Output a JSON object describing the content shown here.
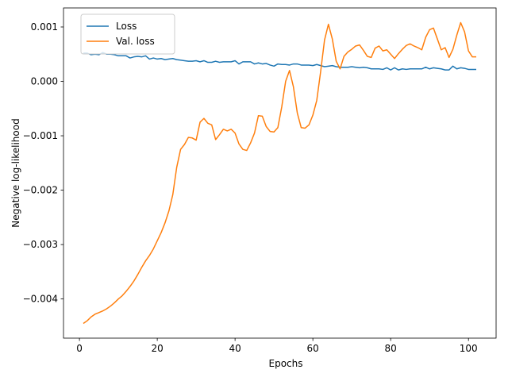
{
  "chart_data": {
    "type": "line",
    "title": "",
    "xlabel": "Epochs",
    "ylabel": "Negative log-likelihood",
    "xlim": [
      -4.1,
      107.1
    ],
    "ylim": [
      -0.00472,
      0.00135
    ],
    "xticks": [
      0,
      20,
      40,
      60,
      80,
      100
    ],
    "xtick_labels": [
      "0",
      "20",
      "40",
      "60",
      "80",
      "100"
    ],
    "yticks": [
      -0.004,
      -0.003,
      -0.002,
      -0.001,
      0.0,
      0.001
    ],
    "ytick_labels": [
      "−0.004",
      "−0.003",
      "−0.002",
      "−0.001",
      "0.000",
      "0.001"
    ],
    "grid": false,
    "legend_position": "top-left",
    "x_start": 1,
    "x_step": 1,
    "series": [
      {
        "name": "Loss",
        "color": "#1f77b4",
        "values": [
          0.00052,
          0.00052,
          0.00049,
          0.0005,
          0.00049,
          0.00053,
          0.0005,
          0.0005,
          0.00049,
          0.00047,
          0.00047,
          0.00047,
          0.00043,
          0.00045,
          0.00046,
          0.00045,
          0.00047,
          0.00041,
          0.00043,
          0.00041,
          0.00042,
          0.0004,
          0.00041,
          0.00042,
          0.0004,
          0.00039,
          0.00038,
          0.00037,
          0.00037,
          0.00038,
          0.00036,
          0.00038,
          0.00035,
          0.00035,
          0.00037,
          0.00035,
          0.00036,
          0.00036,
          0.00036,
          0.00038,
          0.00032,
          0.00036,
          0.00036,
          0.00036,
          0.00032,
          0.00034,
          0.00032,
          0.00033,
          0.0003,
          0.00028,
          0.00032,
          0.00031,
          0.00031,
          0.0003,
          0.00032,
          0.00032,
          0.0003,
          0.0003,
          0.0003,
          0.00029,
          0.00031,
          0.00029,
          0.00027,
          0.00028,
          0.00029,
          0.00027,
          0.00026,
          0.00026,
          0.00026,
          0.00027,
          0.00026,
          0.00025,
          0.00026,
          0.00025,
          0.00023,
          0.00023,
          0.00023,
          0.00022,
          0.00025,
          0.00021,
          0.00025,
          0.00021,
          0.00023,
          0.00022,
          0.00023,
          0.00023,
          0.00023,
          0.00023,
          0.00026,
          0.00023,
          0.00025,
          0.00024,
          0.00023,
          0.00021,
          0.00021,
          0.00028,
          0.00023,
          0.00025,
          0.00024,
          0.00022,
          0.00022,
          0.00022
        ]
      },
      {
        "name": "Val. loss",
        "color": "#ff7f0e",
        "values": [
          -0.00445,
          -0.0044,
          -0.00433,
          -0.00428,
          -0.00425,
          -0.00422,
          -0.00418,
          -0.00413,
          -0.00407,
          -0.004,
          -0.00394,
          -0.00386,
          -0.00377,
          -0.00367,
          -0.00355,
          -0.00342,
          -0.0033,
          -0.0032,
          -0.00308,
          -0.00293,
          -0.00278,
          -0.0026,
          -0.00238,
          -0.00208,
          -0.00158,
          -0.00125,
          -0.00116,
          -0.00103,
          -0.00104,
          -0.00108,
          -0.00075,
          -0.00068,
          -0.00077,
          -0.0008,
          -0.00107,
          -0.00098,
          -0.00088,
          -0.00091,
          -0.00088,
          -0.00095,
          -0.00115,
          -0.00125,
          -0.00127,
          -0.00113,
          -0.00095,
          -0.00063,
          -0.00064,
          -0.00083,
          -0.00092,
          -0.00093,
          -0.00085,
          -0.00047,
          0.0,
          0.0002,
          -0.0001,
          -0.00058,
          -0.00085,
          -0.00086,
          -0.0008,
          -0.00062,
          -0.00035,
          0.00018,
          0.00076,
          0.00105,
          0.00078,
          0.00037,
          0.00023,
          0.00046,
          0.00054,
          0.00059,
          0.00065,
          0.00067,
          0.00057,
          0.00046,
          0.00044,
          0.00061,
          0.00065,
          0.00056,
          0.00058,
          0.0005,
          0.00042,
          0.00051,
          0.00059,
          0.00066,
          0.00069,
          0.00065,
          0.00062,
          0.00058,
          0.00081,
          0.00095,
          0.00098,
          0.00078,
          0.00058,
          0.00062,
          0.00044,
          0.00059,
          0.00085,
          0.00108,
          0.00091,
          0.00056,
          0.00045,
          0.00045
        ]
      }
    ]
  }
}
